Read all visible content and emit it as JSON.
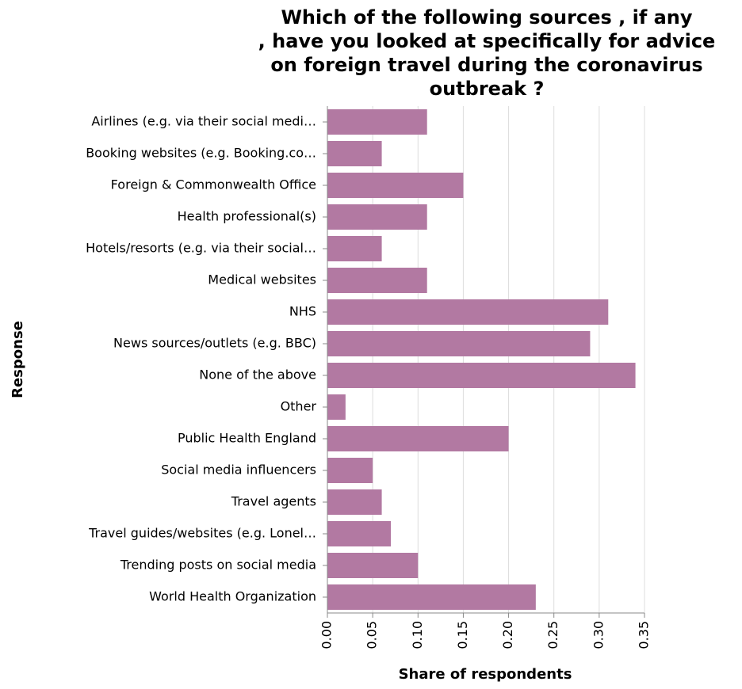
{
  "chart_data": {
    "type": "bar",
    "orientation": "horizontal",
    "title_lines": [
      "Which of the following sources , if any",
      ", have you looked at specifically for advice",
      "on foreign travel during the coronavirus",
      "outbreak ?"
    ],
    "xlabel": "Share of respondents",
    "ylabel": "Response",
    "xlim": [
      0,
      0.35
    ],
    "xticks": [
      "0.00",
      "0.05",
      "0.10",
      "0.15",
      "0.20",
      "0.25",
      "0.30",
      "0.35"
    ],
    "grid": true,
    "bar_color": "#b279a2",
    "categories": [
      "Airlines (e.g. via their social medi…",
      "Booking websites (e.g. Booking.co…",
      "Foreign & Commonwealth Office",
      "Health professional(s)",
      "Hotels/resorts (e.g. via their social…",
      "Medical websites",
      "NHS",
      "News sources/outlets (e.g. BBC)",
      "None of the above",
      "Other",
      "Public Health England",
      "Social media influencers",
      "Travel agents",
      "Travel guides/websites (e.g. Lonel…",
      "Trending posts on social media",
      "World Health Organization"
    ],
    "values": [
      0.11,
      0.06,
      0.15,
      0.11,
      0.06,
      0.11,
      0.31,
      0.29,
      0.34,
      0.02,
      0.2,
      0.05,
      0.06,
      0.07,
      0.1,
      0.23
    ]
  }
}
